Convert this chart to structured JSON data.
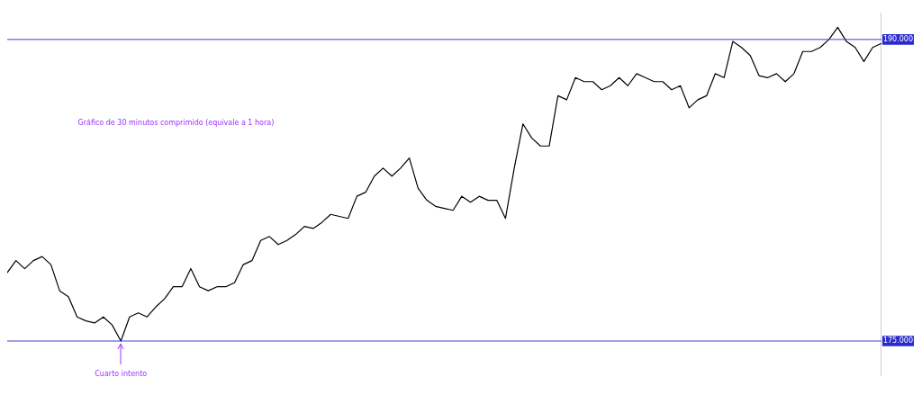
{
  "chart_data": {
    "type": "line",
    "categories": [
      null,
      null,
      null,
      null,
      null,
      null,
      null,
      null,
      null,
      null,
      null,
      null,
      null,
      null,
      null,
      null,
      null,
      null,
      null,
      null,
      null,
      null,
      null,
      null,
      null,
      null,
      null,
      null,
      null,
      null,
      null,
      null,
      null,
      null,
      null,
      null,
      null,
      null,
      null,
      null,
      null,
      null,
      null,
      null,
      null,
      null,
      null,
      null,
      null,
      null,
      null,
      null,
      null,
      null,
      null,
      null,
      null,
      null,
      null,
      null,
      null,
      null,
      null,
      null,
      null,
      null,
      null,
      null,
      null,
      null,
      null,
      null,
      null,
      null,
      null,
      null,
      null,
      null,
      null,
      null,
      null,
      null,
      null,
      null,
      null,
      null,
      null,
      null,
      null,
      null,
      null,
      null,
      null,
      null,
      null,
      null,
      null,
      null,
      null,
      null,
      null
    ],
    "series": [
      {
        "color": "#000000",
        "values": [
          178.4,
          179.0,
          178.6,
          179.0,
          179.2,
          178.8,
          177.5,
          177.2,
          176.2,
          176.0,
          175.9,
          176.2,
          175.8,
          175.0,
          176.2,
          176.4,
          176.2,
          176.7,
          177.1,
          177.7,
          177.7,
          178.6,
          177.7,
          177.5,
          177.7,
          177.7,
          177.9,
          178.8,
          179.0,
          180.0,
          180.2,
          179.8,
          180.0,
          180.3,
          180.7,
          180.6,
          180.9,
          181.3,
          181.2,
          181.1,
          182.2,
          182.4,
          183.2,
          183.6,
          183.2,
          183.6,
          184.1,
          182.6,
          182.0,
          181.7,
          181.6,
          181.5,
          182.2,
          181.9,
          182.2,
          182.0,
          182.0,
          181.1,
          183.6,
          185.8,
          185.1,
          184.7,
          184.7,
          187.2,
          187.0,
          188.1,
          187.9,
          187.9,
          187.5,
          187.7,
          188.1,
          187.7,
          188.3,
          188.1,
          187.9,
          187.9,
          187.5,
          187.7,
          186.6,
          187.0,
          187.2,
          188.3,
          188.1,
          189.9,
          189.6,
          189.2,
          188.2,
          188.1,
          188.3,
          187.9,
          188.3,
          189.4,
          189.4,
          189.6,
          190.0,
          190.6,
          189.9,
          189.6,
          188.9,
          189.6,
          189.8
        ]
      }
    ],
    "ylim": [
      173.3,
      191.3
    ],
    "yticks": [
      {
        "value": 175,
        "label": "175.000"
      },
      {
        "value": 190,
        "label": "190.000"
      }
    ],
    "ref_lines": [
      {
        "axis": "y",
        "value": 175,
        "color": "#3f3fd0"
      },
      {
        "axis": "y",
        "value": 190,
        "color": "#3f3fd0"
      }
    ],
    "annotations": [
      "Gráfico de 30 minutos comprimido (equivale a 1 hora)",
      "Cuarto intento"
    ],
    "tick_labels": "y",
    "grid": false,
    "legend": false,
    "marker": "none",
    "line_style": "solid"
  }
}
